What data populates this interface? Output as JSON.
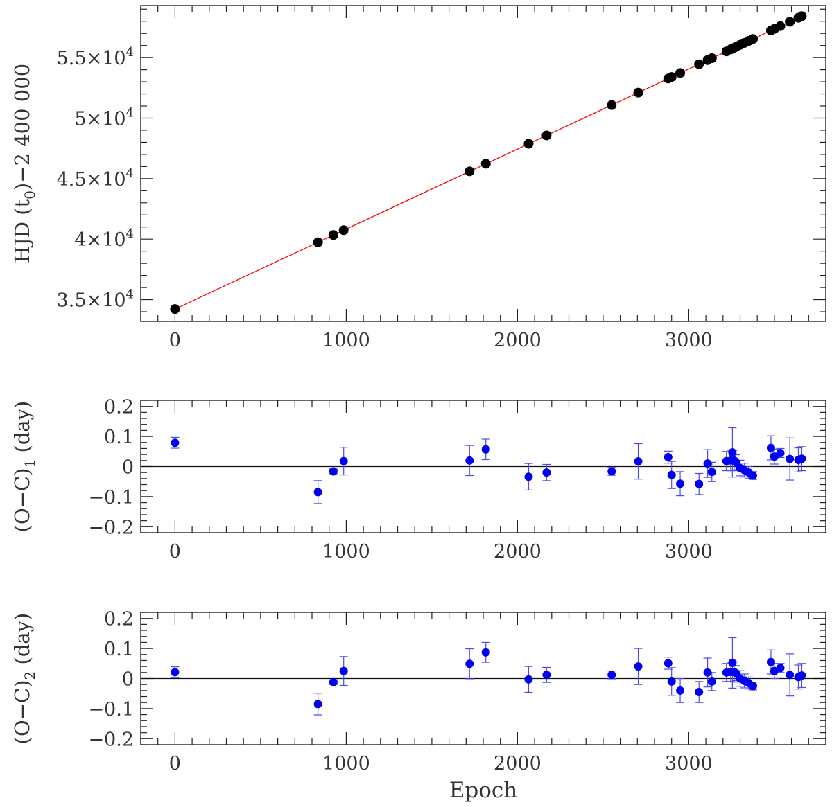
{
  "chart_data": [
    {
      "type": "scatter",
      "panel": "top",
      "xlabel": "",
      "ylabel": "HJD (t0)−2 400 000",
      "ylabel_parts": {
        "pre": "HJD (t",
        "sub": "0",
        "post": ")−2 400 000"
      },
      "xlim": [
        -200,
        3800
      ],
      "ylim": [
        33200,
        59300
      ],
      "x_ticks": [
        0,
        1000,
        2000,
        3000
      ],
      "x_tick_labels": [
        "0",
        "1000",
        "2000",
        "3000"
      ],
      "y_ticks": [
        35000,
        40000,
        45000,
        50000,
        55000
      ],
      "y_tick_labels": [
        {
          "mant": "3.5×10",
          "exp": "4"
        },
        {
          "mant": "4×10",
          "exp": "4"
        },
        {
          "mant": "4.5×10",
          "exp": "4"
        },
        {
          "mant": "5×10",
          "exp": "4"
        },
        {
          "mant": "5.5×10",
          "exp": "4"
        }
      ],
      "marker_color": "#000000",
      "fit_line": {
        "color": "#ff0000",
        "x": [
          0,
          3660
        ],
        "y": [
          34220,
          58420
        ]
      },
      "points": {
        "x": [
          0,
          835,
          925,
          985,
          1720,
          1815,
          2065,
          2170,
          2550,
          2705,
          2880,
          2900,
          2950,
          3060,
          3110,
          3135,
          3220,
          3245,
          3255,
          3265,
          3275,
          3300,
          3325,
          3350,
          3375,
          3480,
          3500,
          3535,
          3590,
          3640,
          3660
        ],
        "y": [
          34220,
          39740,
          40340,
          40740,
          45600,
          46230,
          47880,
          48570,
          51080,
          52110,
          53270,
          53400,
          53730,
          54450,
          54790,
          54950,
          55510,
          55680,
          55750,
          55810,
          55880,
          56050,
          56210,
          56380,
          56540,
          57240,
          57370,
          57600,
          57960,
          58290,
          58420
        ]
      }
    },
    {
      "type": "scatter",
      "panel": "middle",
      "xlabel": "",
      "ylabel": "(O−C)1 (day)",
      "ylabel_parts": {
        "pre": "(O−C)",
        "sub": "1",
        "post": " (day)"
      },
      "xlim": [
        -200,
        3800
      ],
      "ylim": [
        -0.22,
        0.22
      ],
      "x_ticks": [
        0,
        1000,
        2000,
        3000
      ],
      "x_tick_labels": [
        "0",
        "1000",
        "2000",
        "3000"
      ],
      "y_ticks": [
        -0.2,
        -0.1,
        0,
        0.1,
        0.2
      ],
      "y_tick_labels": [
        "−0.2",
        "−0.1",
        "0",
        "0.1",
        "0.2"
      ],
      "marker_color": "#0000ee",
      "zero_line": true,
      "points": {
        "x": [
          0,
          835,
          925,
          985,
          1720,
          1815,
          2065,
          2170,
          2550,
          2705,
          2880,
          2900,
          2950,
          3060,
          3110,
          3135,
          3220,
          3245,
          3255,
          3265,
          3275,
          3300,
          3325,
          3350,
          3375,
          3480,
          3500,
          3535,
          3590,
          3640,
          3660
        ],
        "y": [
          0.079,
          -0.085,
          -0.016,
          0.018,
          0.02,
          0.057,
          -0.034,
          -0.02,
          -0.016,
          0.017,
          0.031,
          -0.028,
          -0.057,
          -0.058,
          0.01,
          -0.018,
          0.018,
          0.02,
          0.047,
          0.02,
          0.014,
          -0.005,
          -0.012,
          -0.02,
          -0.03,
          0.062,
          0.033,
          0.045,
          0.025,
          0.022,
          0.026
        ],
        "err": [
          0.018,
          0.038,
          0.008,
          0.046,
          0.05,
          0.034,
          0.044,
          0.027,
          0.013,
          0.059,
          0.02,
          0.045,
          0.04,
          0.035,
          0.046,
          0.032,
          0.032,
          0.034,
          0.082,
          0.034,
          0.025,
          0.026,
          0.023,
          0.02,
          0.013,
          0.04,
          0.025,
          0.015,
          0.07,
          0.04,
          0.04
        ]
      }
    },
    {
      "type": "scatter",
      "panel": "bottom",
      "xlabel": "Epoch",
      "ylabel": "(O−C)2 (day)",
      "ylabel_parts": {
        "pre": "(O−C)",
        "sub": "2",
        "post": " (day)"
      },
      "xlim": [
        -200,
        3800
      ],
      "ylim": [
        -0.22,
        0.22
      ],
      "x_ticks": [
        0,
        1000,
        2000,
        3000
      ],
      "x_tick_labels": [
        "0",
        "1000",
        "2000",
        "3000"
      ],
      "y_ticks": [
        -0.2,
        -0.1,
        0,
        0.1,
        0.2
      ],
      "y_tick_labels": [
        "−0.2",
        "−0.1",
        "0",
        "0.1",
        "0.2"
      ],
      "marker_color": "#0000ee",
      "zero_line": true,
      "points": {
        "x": [
          0,
          835,
          925,
          985,
          1720,
          1815,
          2065,
          2170,
          2550,
          2705,
          2880,
          2900,
          2950,
          3060,
          3110,
          3135,
          3220,
          3245,
          3255,
          3265,
          3275,
          3300,
          3325,
          3350,
          3375,
          3480,
          3500,
          3535,
          3590,
          3640,
          3660
        ],
        "y": [
          0.021,
          -0.085,
          -0.012,
          0.025,
          0.049,
          0.087,
          -0.003,
          0.012,
          0.012,
          0.04,
          0.051,
          -0.01,
          -0.04,
          -0.045,
          0.02,
          -0.01,
          0.02,
          0.022,
          0.052,
          0.022,
          0.018,
          0.0,
          -0.008,
          -0.015,
          -0.025,
          0.055,
          0.025,
          0.035,
          0.012,
          0.005,
          0.01
        ],
        "err": [
          0.018,
          0.036,
          0.008,
          0.048,
          0.05,
          0.033,
          0.043,
          0.025,
          0.013,
          0.06,
          0.02,
          0.046,
          0.04,
          0.035,
          0.048,
          0.03,
          0.03,
          0.032,
          0.084,
          0.034,
          0.025,
          0.026,
          0.023,
          0.02,
          0.013,
          0.04,
          0.025,
          0.015,
          0.07,
          0.04,
          0.04
        ]
      }
    }
  ]
}
